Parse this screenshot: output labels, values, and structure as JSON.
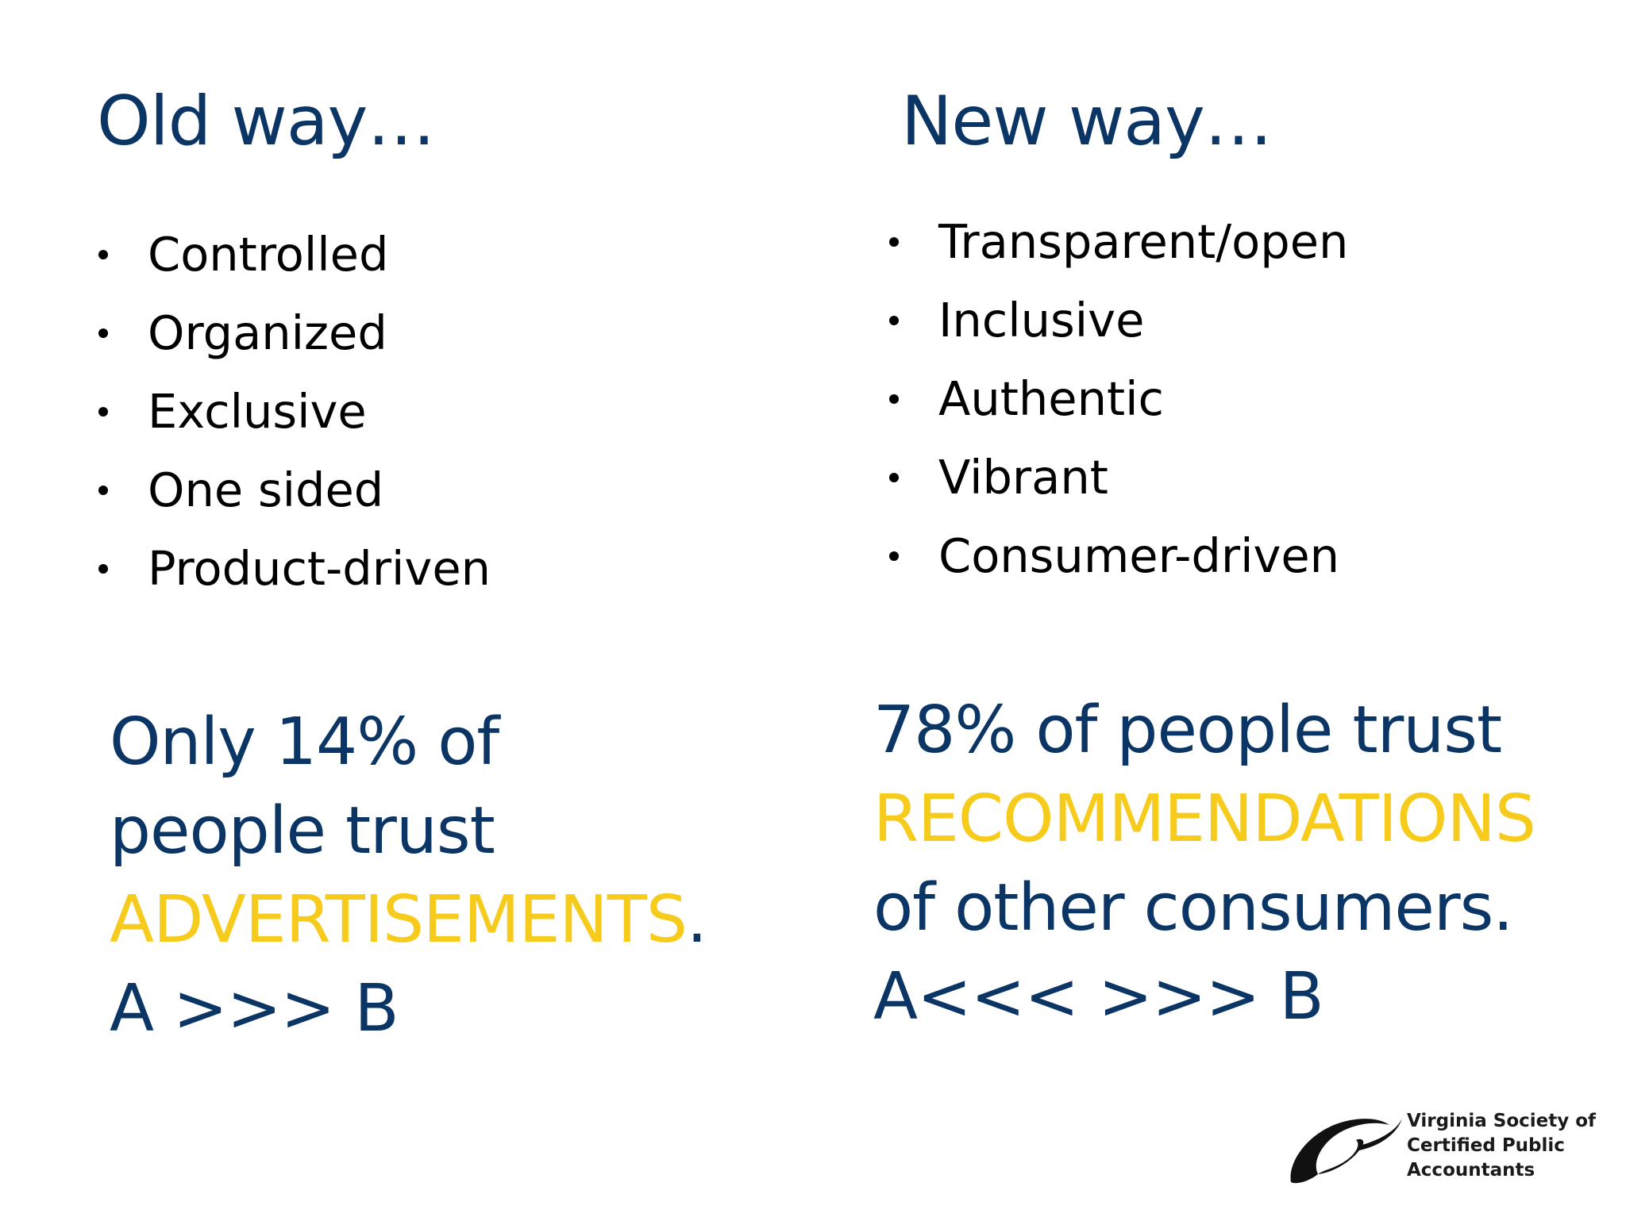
{
  "left": {
    "heading": "Old way…",
    "items": [
      "Controlled",
      "Organized",
      "Exclusive",
      "One sided",
      "Product-driven"
    ],
    "stat": {
      "line1": "Only 14% of",
      "line2": "people trust",
      "highlight": "ADVERTISEMENTS",
      "punct": ".",
      "arrow": "A >>> B"
    }
  },
  "right": {
    "heading": "New way…",
    "items": [
      "Transparent/open",
      "Inclusive",
      "Authentic",
      "Vibrant",
      "Consumer-driven"
    ],
    "stat": {
      "line1": "78% of people trust",
      "highlight": "RECOMMENDATIONS",
      "line3": "of other consumers.",
      "arrow": "A<<< >>> B"
    }
  },
  "logo": {
    "line1": "Virginia Society of",
    "line2": "Certified Public",
    "line3": "Accountants"
  },
  "colors": {
    "navy": "#0b3565",
    "accent_yellow": "#f6cb1b",
    "bullet_text": "#000000"
  }
}
